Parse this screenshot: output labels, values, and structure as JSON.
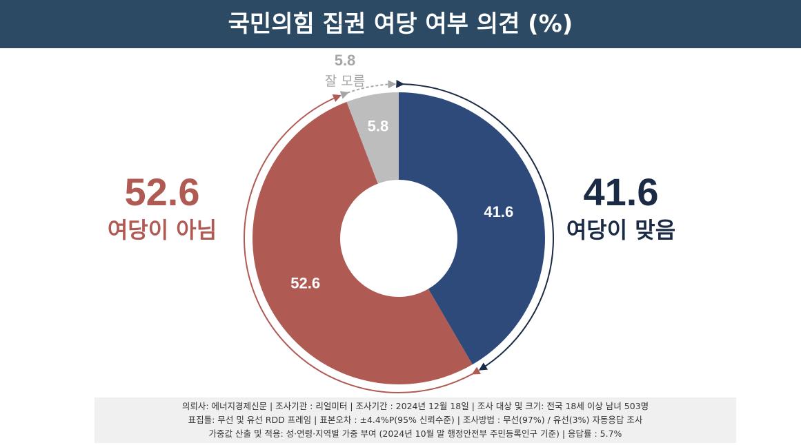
{
  "header": {
    "title": "국민의힘 집권 여당 여부 의견 (%)"
  },
  "chart_data": {
    "type": "pie",
    "title": "국민의힘 집권 여당 여부 의견 (%)",
    "slices": [
      {
        "label": "여당이 맞음",
        "value": 41.6,
        "color": "#2e4a7a",
        "label_color": "#1c2b45"
      },
      {
        "label": "여당이 아님",
        "value": 52.6,
        "color": "#b05a54",
        "label_color": "#b05a54"
      },
      {
        "label": "잘 모름",
        "value": 5.8,
        "color": "#bdbdbd",
        "label_color": "#a6a6a6"
      }
    ]
  },
  "footer": {
    "lines": [
      "의뢰사: 에너지경제신문 | 조사기관 : 리얼미터  | 조사기간 : 2024년 12월 18일 | 조사 대상 및 크기: 전국 18세 이상 남녀 503명",
      "표집틀: 무선 및 유선 RDD 프레임 | 표본오차 : ±4.4%P(95% 신뢰수준) | 조사방법 : 무선(97%) / 유선(3%) 자동응답 조사",
      "가중값 산출 및 적용: 성·연령·지역별 가중 부여 (2024년 10월 말 행정안전부 주민등록인구 기준) | 응답률 : 5.7%"
    ]
  }
}
